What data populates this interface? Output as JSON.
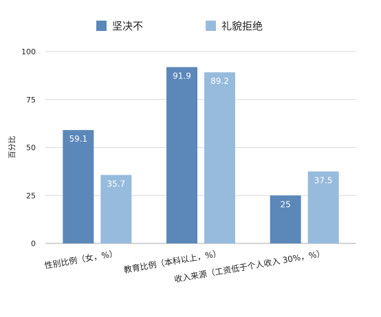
{
  "chart_data": {
    "type": "bar",
    "categories": [
      "性别比例（女，%）",
      "教育比例（本科以上，%）",
      "收入来源（工资低于个人收入 30%，%）"
    ],
    "series": [
      {
        "name": "坚决不",
        "values": [
          59.1,
          91.9,
          25
        ],
        "labels": [
          "59.1",
          "91.9",
          "25"
        ],
        "color": "#5b87b9"
      },
      {
        "name": "礼貌拒绝",
        "values": [
          35.7,
          89.2,
          37.5
        ],
        "labels": [
          "35.7",
          "89.2",
          "37.5"
        ],
        "color": "#97bbdd"
      }
    ],
    "ylabel": "百分比",
    "ylim": [
      0,
      100
    ],
    "yticks": [
      0,
      25,
      50,
      75,
      100
    ],
    "ytick_labels": [
      "0",
      "25",
      "50",
      "75",
      "100"
    ],
    "grid": true,
    "legend_position": "top"
  }
}
